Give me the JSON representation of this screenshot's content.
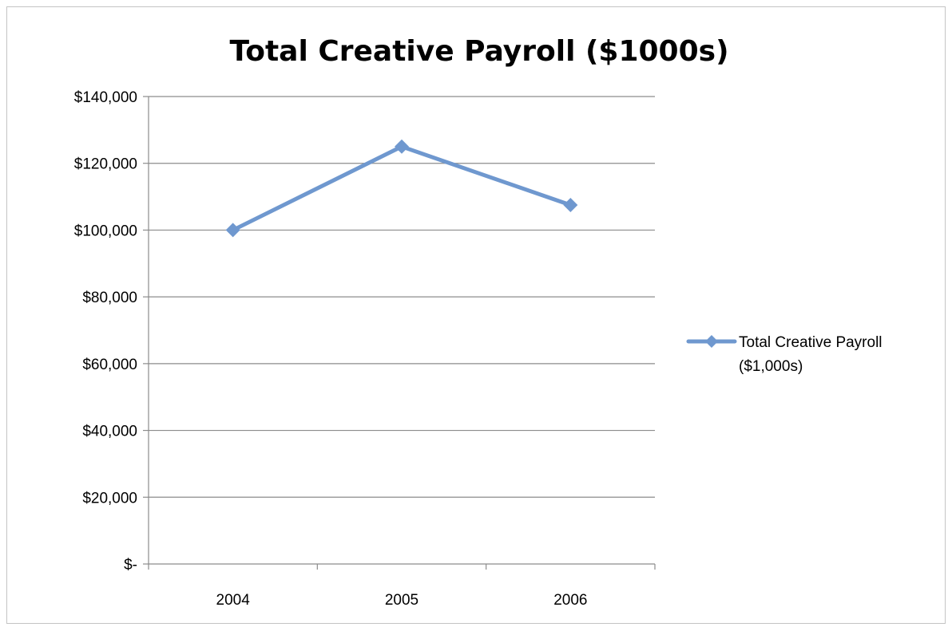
{
  "chart_data": {
    "type": "line",
    "title": "Total Creative Payroll ($1000s)",
    "xlabel": "",
    "ylabel": "",
    "categories": [
      "2004",
      "2005",
      "2006"
    ],
    "ylim": [
      0,
      140000
    ],
    "yticks": [
      0,
      20000,
      40000,
      60000,
      80000,
      100000,
      120000,
      140000
    ],
    "ytick_labels": [
      "$-",
      "$20,000",
      "$40,000",
      "$60,000",
      "$80,000",
      "$100,000",
      "$120,000",
      "$140,000"
    ],
    "grid": true,
    "legend_position": "right",
    "series": [
      {
        "name": "Total Creative Payroll ($1,000s)",
        "legend_lines": [
          "Total Creative Payroll",
          "($1,000s)"
        ],
        "values": [
          100000,
          125000,
          107500
        ],
        "color": "#6f98cf",
        "marker": "diamond"
      }
    ]
  },
  "colors": {
    "gridline": "#8c8c8c",
    "axis": "#8c8c8c",
    "frame": "#c4c4c4"
  }
}
